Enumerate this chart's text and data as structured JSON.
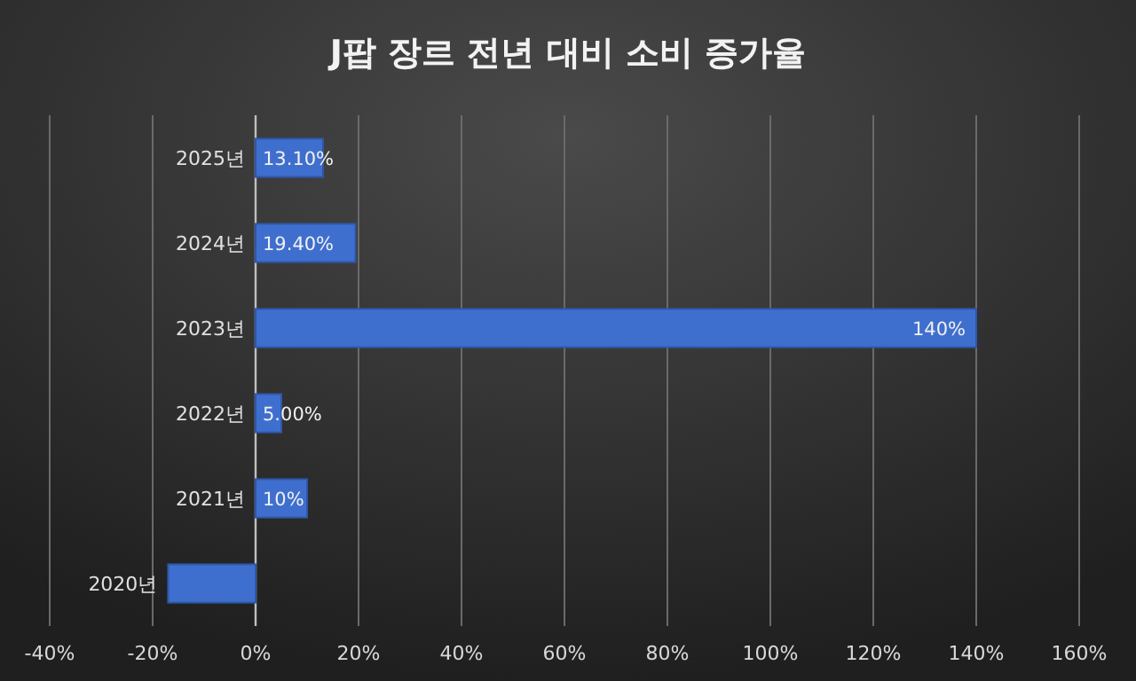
{
  "chart_data": {
    "type": "bar",
    "orientation": "horizontal",
    "title": "J팝 장르 전년 대비 소비 증가율",
    "categories": [
      "2025년",
      "2024년",
      "2023년",
      "2022년",
      "2021년",
      "2020년"
    ],
    "values": [
      13.1,
      19.4,
      140,
      5,
      10,
      -17
    ],
    "value_labels": [
      "13.10%",
      "19.40%",
      "140%",
      "5.00%",
      "10%",
      null
    ],
    "color": "#3f6fce",
    "xlim": [
      -40,
      160
    ],
    "xticks": [
      {
        "value": -40,
        "label": "-40%"
      },
      {
        "value": -20,
        "label": "-20%"
      },
      {
        "value": 0,
        "label": "0%"
      },
      {
        "value": 20,
        "label": "20%"
      },
      {
        "value": 40,
        "label": "40%"
      },
      {
        "value": 60,
        "label": "60%"
      },
      {
        "value": 80,
        "label": "80%"
      },
      {
        "value": 100,
        "label": "100%"
      },
      {
        "value": 120,
        "label": "120%"
      },
      {
        "value": 140,
        "label": "140%"
      },
      {
        "value": 160,
        "label": "160%"
      }
    ],
    "grid": "x"
  }
}
